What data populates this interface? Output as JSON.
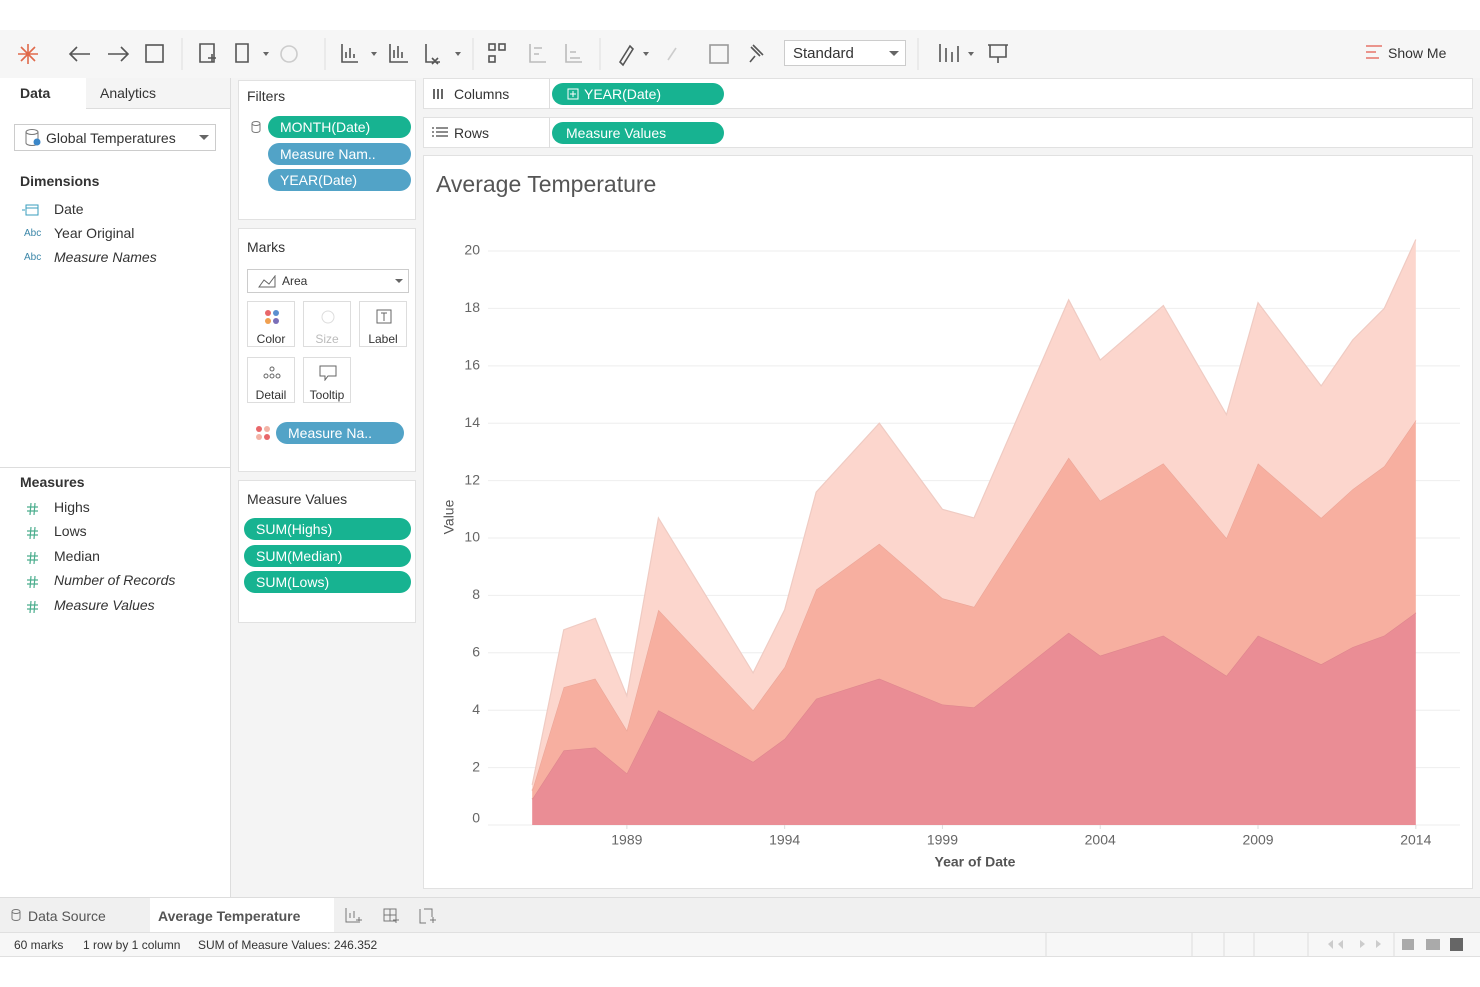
{
  "toolbar": {
    "fit": "Standard",
    "show_me": "Show Me"
  },
  "data_pane": {
    "tabs": [
      "Data",
      "Analytics"
    ],
    "datasource": "Global Temperatures",
    "dimensions_title": "Dimensions",
    "dimensions": [
      {
        "name": "Date"
      },
      {
        "name": "Year Original",
        "icon": "Abc"
      },
      {
        "name": "Measure Names",
        "icon": "Abc"
      }
    ],
    "measures_title": "Measures",
    "measures": [
      "Highs",
      "Lows",
      "Median",
      "Number of Records",
      "Measure Values"
    ]
  },
  "filters": {
    "title": "Filters",
    "pills": [
      "MONTH(Date)",
      "Measure Nam..",
      "YEAR(Date)"
    ]
  },
  "marks": {
    "title": "Marks",
    "mark_type": "Area",
    "buttons": [
      "Color",
      "Size",
      "Label",
      "Detail",
      "Tooltip"
    ],
    "pill": "Measure Na.."
  },
  "measure_values": {
    "title": "Measure Values"
  },
  "shelves": {
    "columns_label": "Columns",
    "columns_pill": "YEAR(Date)",
    "rows_label": "Rows",
    "rows_pill": "Measure Values"
  },
  "chart_data": {
    "type": "stacked_area",
    "title": "Average Temperature",
    "x_label": "Year of Date",
    "y_label": "Value",
    "x": [
      1986,
      1987,
      1988,
      1989,
      1990,
      1993,
      1994,
      1995,
      1997,
      1999,
      2000,
      2003,
      2004,
      2006,
      2008,
      2009,
      2011,
      2012,
      2013,
      2014
    ],
    "series": [
      {
        "name": "SUM(Highs)",
        "color": "#fcd6cd",
        "values": [
          0.2,
          2.0,
          2.1,
          1.2,
          3.2,
          1.3,
          2.0,
          3.4,
          4.2,
          3.1,
          3.1,
          5.5,
          4.9,
          5.5,
          4.3,
          5.6,
          4.6,
          5.2,
          5.5,
          6.3
        ]
      },
      {
        "name": "SUM(Median)",
        "color": "#f7afa0",
        "values": [
          0.3,
          2.2,
          2.4,
          1.5,
          3.5,
          1.8,
          2.5,
          3.8,
          4.7,
          3.7,
          3.5,
          6.1,
          5.4,
          6.0,
          4.8,
          6.0,
          5.1,
          5.5,
          5.9,
          6.7
        ]
      },
      {
        "name": "SUM(Lows)",
        "color": "#ea8d95",
        "values": [
          0.9,
          2.6,
          2.7,
          1.8,
          4.0,
          2.2,
          3.0,
          4.4,
          5.1,
          4.2,
          4.1,
          6.7,
          5.9,
          6.6,
          5.2,
          6.6,
          5.6,
          6.2,
          6.6,
          7.4
        ]
      }
    ],
    "xlim": [
      1984.6,
      2015.4
    ],
    "xticks": [
      1989,
      1994,
      1999,
      2004,
      2009,
      2014
    ],
    "ylim": [
      0,
      21.2
    ],
    "yticks": [
      0,
      2,
      4,
      6,
      8,
      10,
      12,
      14,
      16,
      18,
      20
    ],
    "grid": true
  },
  "tabs": {
    "data_source": "Data Source",
    "sheet": "Average Temperature"
  },
  "status_bar": {
    "marks": "60 marks",
    "size": "1 row by 1 column",
    "sum": "SUM of Measure Values: 246.352"
  }
}
